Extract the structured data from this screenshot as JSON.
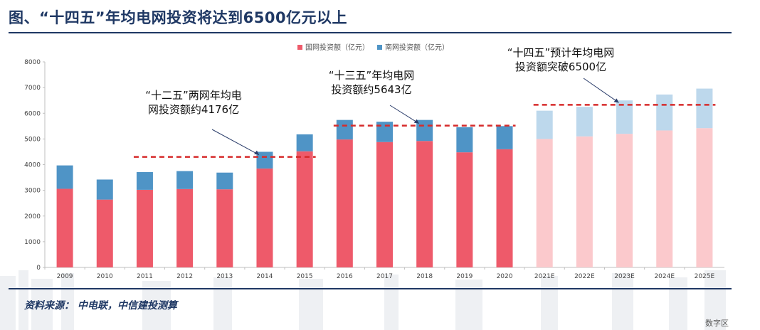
{
  "header": {
    "title": "图、“十四五”年均电网投资将达到6500亿元以上"
  },
  "footer": {
    "source": "资料来源：  中电联，中信建投测算",
    "watermark": "数字区"
  },
  "colors": {
    "navy": "#1f3864",
    "grid_red": "#ee5a6a",
    "distribution_blue": "#4f94c6",
    "proj_red": "#fbc9cc",
    "proj_blue": "#bdd8ec",
    "dash": "#d62b2b"
  },
  "chart_data": {
    "type": "bar",
    "stacked": true,
    "categories": [
      "2009",
      "2010",
      "2011",
      "2012",
      "2013",
      "2014",
      "2015",
      "2016",
      "2017",
      "2018",
      "2019",
      "2020",
      "2021E",
      "2022E",
      "2023E",
      "2024E",
      "2025E"
    ],
    "projected_from": "2021E",
    "series": [
      {
        "name": "国网投资额（亿元）",
        "values": [
          3060,
          2640,
          3020,
          3050,
          3040,
          3850,
          4520,
          4980,
          4880,
          4920,
          4480,
          4600,
          5000,
          5100,
          5200,
          5330,
          5420
        ]
      },
      {
        "name": "南网投资额（亿元）",
        "values": [
          910,
          780,
          690,
          700,
          650,
          650,
          660,
          760,
          790,
          820,
          980,
          900,
          1100,
          1150,
          1300,
          1400,
          1540
        ]
      }
    ],
    "ylim": [
      0,
      8000
    ],
    "yticks": [
      0,
      1000,
      2000,
      3000,
      4000,
      5000,
      6000,
      7000,
      8000
    ],
    "legend_position": "top-center",
    "reference_lines": [
      {
        "label": "十二五",
        "value": 4300,
        "from": "2011",
        "to": "2015"
      },
      {
        "label": "十三五",
        "value": 5520,
        "from": "2016",
        "to": "2020"
      },
      {
        "label": "十四五",
        "value": 6330,
        "from": "2021E",
        "to": "2025E"
      }
    ],
    "annotations": [
      {
        "lines": [
          "“十二五”两网年均电",
          "网投资额约4176亿"
        ],
        "points_to": "2014"
      },
      {
        "lines": [
          "“十三五”年均电网",
          "投资额约5643亿"
        ],
        "points_to": "2018"
      },
      {
        "lines": [
          "“十四五”预计年均电网",
          "投资额突破6500亿"
        ],
        "points_to": "2023E"
      }
    ]
  }
}
